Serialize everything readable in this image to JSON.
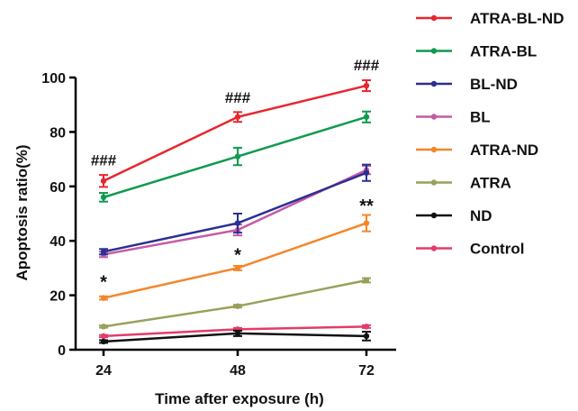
{
  "chart_data": {
    "type": "line",
    "title": "",
    "xlabel": "Time after exposure (h)",
    "ylabel": "Apoptosis ratio(%)",
    "x": [
      24,
      48,
      72
    ],
    "xticks": [
      "24",
      "48",
      "72"
    ],
    "yticks": [
      "0",
      "20",
      "40",
      "60",
      "80",
      "100"
    ],
    "ylim": [
      0,
      100
    ],
    "legend_position": "right",
    "grid": false,
    "series": [
      {
        "name": "ATRA-BL-ND",
        "color": "#e8262e",
        "values": [
          62,
          85.5,
          97
        ],
        "errors": [
          2.2,
          1.8,
          2.0
        ]
      },
      {
        "name": "ATRA-BL",
        "color": "#0f9a4f",
        "values": [
          56,
          71,
          85.5
        ],
        "errors": [
          1.6,
          3.2,
          2.0
        ]
      },
      {
        "name": "BL-ND",
        "color": "#2b2f93",
        "values": [
          36,
          46.5,
          65
        ],
        "errors": [
          1.0,
          3.5,
          3.0
        ]
      },
      {
        "name": "BL",
        "color": "#c45aa6",
        "values": [
          35,
          44,
          66
        ],
        "errors": [
          1.0,
          2.0,
          1.5
        ]
      },
      {
        "name": "ATRA-ND",
        "color": "#f4862a",
        "values": [
          19,
          30,
          46.5
        ],
        "errors": [
          0.6,
          0.8,
          3.0
        ]
      },
      {
        "name": "ATRA",
        "color": "#9aa05a",
        "values": [
          8.5,
          16,
          25.5
        ],
        "errors": [
          0.4,
          0.5,
          0.8
        ]
      },
      {
        "name": "ND",
        "color": "#111111",
        "values": [
          3,
          6,
          5
        ],
        "errors": [
          0.5,
          1.0,
          1.6
        ]
      },
      {
        "name": "Control",
        "color": "#e33b6b",
        "values": [
          5,
          7.5,
          8.5
        ],
        "errors": [
          0.4,
          0.5,
          0.5
        ]
      }
    ],
    "annotations": [
      {
        "text": "###",
        "x": 24,
        "y": 69
      },
      {
        "text": "###",
        "x": 48,
        "y": 92
      },
      {
        "text": "###",
        "x": 72,
        "y": 104
      },
      {
        "text": "*",
        "x": 24,
        "y": 24
      },
      {
        "text": "*",
        "x": 48,
        "y": 34
      },
      {
        "text": "**",
        "x": 72,
        "y": 52
      }
    ]
  }
}
